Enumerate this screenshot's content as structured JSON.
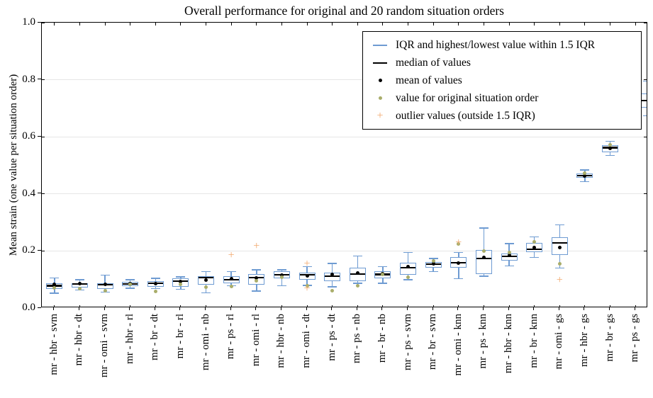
{
  "legend": {
    "items": [
      {
        "marker": "iqr-line",
        "label": "IQR and highest/lowest value within 1.5 IQR"
      },
      {
        "marker": "median-line",
        "label": "median of values"
      },
      {
        "marker": "mean-dot",
        "label": "mean of values"
      },
      {
        "marker": "original-dot",
        "label": "value for original situation order"
      },
      {
        "marker": "outlier-plus",
        "label": "outlier values (outside 1.5 IQR)"
      }
    ]
  },
  "chart_data": {
    "type": "boxplot",
    "title": "Overall performance for original and 20 random situation orders",
    "ylabel": "Mean strain (one value per situation order)",
    "xlabel": "",
    "ylim": [
      0.0,
      1.0
    ],
    "yticks": [
      0.0,
      0.2,
      0.4,
      0.6,
      0.8,
      1.0
    ],
    "gridlines": [
      0.2,
      0.4,
      0.6,
      0.8
    ],
    "grid_color": "#e6e6e6",
    "legend_position": "upper right",
    "colors": {
      "box": "#6e9bd2",
      "median": "#000000",
      "mean": "#000000",
      "original": "#a9ad6a",
      "outlier": "#f2a96e",
      "axis": "#000000"
    },
    "boxes": [
      {
        "label": "mr - hbr - svm",
        "whisker_low": 0.052,
        "q1": 0.068,
        "median": 0.078,
        "q3": 0.088,
        "whisker_high": 0.105,
        "mean": 0.082,
        "original": 0.07,
        "outliers": []
      },
      {
        "label": "mr - hbr - dt",
        "whisker_low": 0.063,
        "q1": 0.072,
        "median": 0.085,
        "q3": 0.088,
        "whisker_high": 0.099,
        "mean": 0.086,
        "original": 0.068,
        "outliers": []
      },
      {
        "label": "mr - omi - svm",
        "whisker_low": 0.056,
        "q1": 0.068,
        "median": 0.082,
        "q3": 0.088,
        "whisker_high": 0.116,
        "mean": 0.083,
        "original": 0.062,
        "outliers": []
      },
      {
        "label": "mr - hbr - rl",
        "whisker_low": 0.07,
        "q1": 0.077,
        "median": 0.085,
        "q3": 0.091,
        "whisker_high": 0.099,
        "mean": 0.085,
        "original": 0.083,
        "outliers": []
      },
      {
        "label": "mr - br - dt",
        "whisker_low": 0.068,
        "q1": 0.074,
        "median": 0.087,
        "q3": 0.095,
        "whisker_high": 0.104,
        "mean": 0.086,
        "original": 0.059,
        "outliers": []
      },
      {
        "label": "mr - br - rl",
        "whisker_low": 0.066,
        "q1": 0.074,
        "median": 0.095,
        "q3": 0.103,
        "whisker_high": 0.109,
        "mean": 0.092,
        "original": 0.084,
        "outliers": []
      },
      {
        "label": "mr - omi - nb",
        "whisker_low": 0.053,
        "q1": 0.082,
        "median": 0.107,
        "q3": 0.112,
        "whisker_high": 0.128,
        "mean": 0.099,
        "original": 0.074,
        "outliers": []
      },
      {
        "label": "mr - ps - rl",
        "whisker_low": 0.078,
        "q1": 0.086,
        "median": 0.099,
        "q3": 0.112,
        "whisker_high": 0.128,
        "mean": 0.104,
        "original": 0.076,
        "outliers": [
          0.183
        ]
      },
      {
        "label": "mr - omi - rl",
        "whisker_low": 0.059,
        "q1": 0.083,
        "median": 0.106,
        "q3": 0.12,
        "whisker_high": 0.134,
        "mean": 0.106,
        "original": 0.095,
        "outliers": [
          0.216
        ]
      },
      {
        "label": "mr - hbr - nb",
        "whisker_low": 0.078,
        "q1": 0.103,
        "median": 0.116,
        "q3": 0.128,
        "whisker_high": 0.134,
        "mean": 0.116,
        "original": 0.109,
        "outliers": []
      },
      {
        "label": "mr - omi - dt",
        "whisker_low": 0.08,
        "q1": 0.099,
        "median": 0.116,
        "q3": 0.124,
        "whisker_high": 0.145,
        "mean": 0.113,
        "original": 0.078,
        "outliers": [
          0.153,
          0.066
        ]
      },
      {
        "label": "mr - ps - dt",
        "whisker_low": 0.074,
        "q1": 0.095,
        "median": 0.112,
        "q3": 0.124,
        "whisker_high": 0.156,
        "mean": 0.117,
        "original": 0.06,
        "outliers": []
      },
      {
        "label": "mr - ps - nb",
        "whisker_low": 0.087,
        "q1": 0.095,
        "median": 0.12,
        "q3": 0.141,
        "whisker_high": 0.183,
        "mean": 0.122,
        "original": 0.078,
        "outliers": []
      },
      {
        "label": "mr - br - nb",
        "whisker_low": 0.087,
        "q1": 0.103,
        "median": 0.118,
        "q3": 0.128,
        "whisker_high": 0.145,
        "mean": 0.12,
        "original": 0.118,
        "outliers": []
      },
      {
        "label": "mr - ps - svm",
        "whisker_low": 0.099,
        "q1": 0.116,
        "median": 0.141,
        "q3": 0.158,
        "whisker_high": 0.195,
        "mean": 0.146,
        "original": 0.108,
        "outliers": []
      },
      {
        "label": "mr - br - svm",
        "whisker_low": 0.128,
        "q1": 0.141,
        "median": 0.153,
        "q3": 0.162,
        "whisker_high": 0.174,
        "mean": 0.155,
        "original": 0.164,
        "outliers": []
      },
      {
        "label": "mr - omi - knn",
        "whisker_low": 0.103,
        "q1": 0.141,
        "median": 0.158,
        "q3": 0.178,
        "whisker_high": 0.195,
        "mean": 0.158,
        "original": 0.225,
        "outliers": [
          0.228
        ]
      },
      {
        "label": "mr - ps - knn",
        "whisker_low": 0.112,
        "q1": 0.12,
        "median": 0.174,
        "q3": 0.203,
        "whisker_high": 0.28,
        "mean": 0.178,
        "original": 0.2,
        "outliers": []
      },
      {
        "label": "mr - hbr - knn",
        "whisker_low": 0.148,
        "q1": 0.166,
        "median": 0.181,
        "q3": 0.191,
        "whisker_high": 0.226,
        "mean": 0.184,
        "original": 0.195,
        "outliers": []
      },
      {
        "label": "mr - br - knn",
        "whisker_low": 0.178,
        "q1": 0.195,
        "median": 0.206,
        "q3": 0.228,
        "whisker_high": 0.25,
        "mean": 0.212,
        "original": 0.232,
        "outliers": []
      },
      {
        "label": "mr - omi - gs",
        "whisker_low": 0.14,
        "q1": 0.187,
        "median": 0.228,
        "q3": 0.249,
        "whisker_high": 0.292,
        "mean": 0.212,
        "original": 0.156,
        "outliers": [
          0.098
        ]
      },
      {
        "label": "mr - hbr - gs",
        "whisker_low": 0.443,
        "q1": 0.457,
        "median": 0.464,
        "q3": 0.472,
        "whisker_high": 0.484,
        "mean": 0.464,
        "original": 0.472,
        "outliers": []
      },
      {
        "label": "mr - br - gs",
        "whisker_low": 0.535,
        "q1": 0.546,
        "median": 0.562,
        "q3": 0.571,
        "whisker_high": 0.584,
        "mean": 0.56,
        "original": 0.572,
        "outliers": []
      },
      {
        "label": "mr - ps - gs",
        "whisker_low": 0.674,
        "q1": 0.703,
        "median": 0.728,
        "q3": 0.753,
        "whisker_high": 0.795,
        "mean": null,
        "original": null,
        "outliers": [],
        "clipped_right": true
      }
    ]
  }
}
